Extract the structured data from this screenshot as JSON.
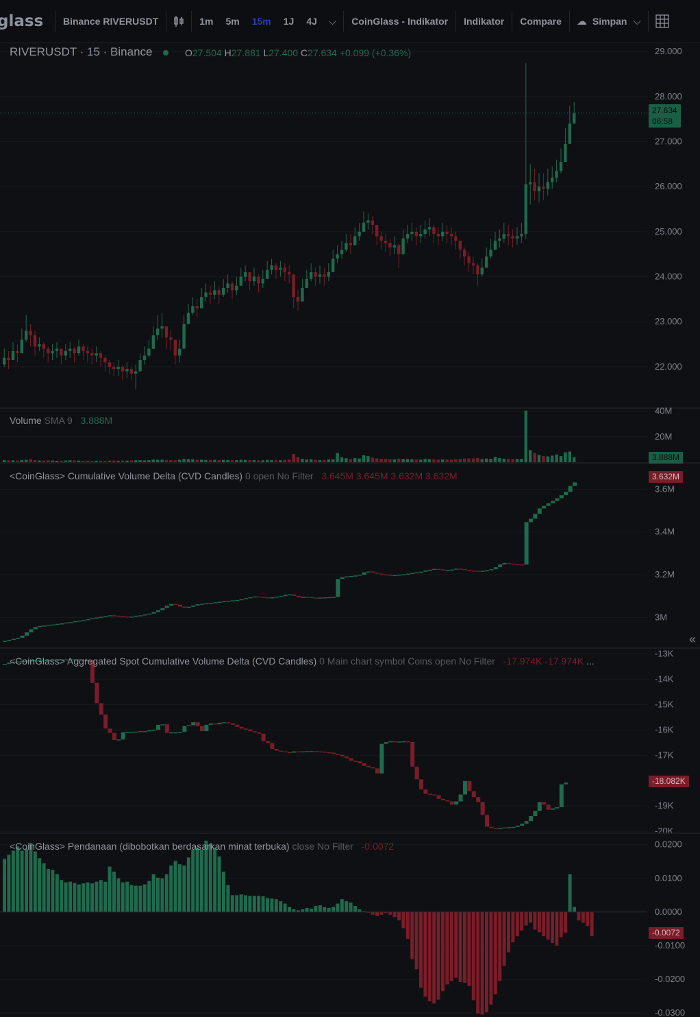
{
  "toolbar": {
    "logo": "glass",
    "symbol": "Binance RIVERUSDT",
    "candle_icon": "candlestick-icon",
    "intervals": [
      "1m",
      "5m",
      "15m",
      "1J",
      "4J"
    ],
    "active_interval": "15m",
    "indicator_button": "CoinGlass - Indikator",
    "indicators": "Indikator",
    "compare": "Compare",
    "save": "Simpan",
    "layout_icon": "grid-icon"
  },
  "colors": {
    "up": "#1f6a4d",
    "down": "#7a1d29",
    "grid": "#17191d",
    "bg": "#0f1013"
  },
  "main": {
    "title": "RIVERUSDT · 15 · Binance",
    "o_label": "O",
    "o": "27.504",
    "h_label": "H",
    "h": "27.881",
    "l_label": "L",
    "l": "27.400",
    "c_label": "C",
    "c": "27.634",
    "change": "+0.099 (+0.36%)",
    "price_tag": "27.634",
    "countdown": "06:58"
  },
  "volume": {
    "label": "Volume",
    "sma": "SMA 9",
    "value": "3.888M",
    "tag": "3.888M"
  },
  "cvd": {
    "label": "<CoinGlass> Cumulative Volume Delta (CVD Candles)",
    "params": "0 open No Filter",
    "o": "3.645M",
    "h": "3.645M",
    "l": "3.632M",
    "c": "3.632M",
    "tag": "3.632M"
  },
  "spot_cvd": {
    "label": "<CoinGlass> Aggregated Spot Cumulative Volume Delta (CVD Candles)",
    "params": "0 Main chart symbol Coins open No Filter",
    "v1": "-17.974K",
    "v2": "-17.974K",
    "more": "...",
    "tag": "-18.082K"
  },
  "funding": {
    "label": "<CoinGlass> Pendanaan (dibobotkan berdasarkan minat terbuka)",
    "params": "close No Filter",
    "value": "-0.0072",
    "tag": "-0.0072"
  },
  "chart_data": [
    {
      "type": "candlestick",
      "title": "RIVERUSDT · 15 · Binance",
      "ylim": [
        21.1,
        29.2
      ],
      "yticks": [
        "29.000",
        "28.000",
        "27.000",
        "26.000",
        "25.000",
        "24.000",
        "23.000",
        "22.000"
      ],
      "close": [
        22.2,
        22.15,
        22.35,
        22.3,
        22.6,
        22.8,
        22.7,
        22.45,
        22.5,
        22.4,
        22.3,
        22.35,
        22.4,
        22.25,
        22.35,
        22.4,
        22.3,
        22.45,
        22.35,
        22.3,
        22.25,
        22.3,
        22.2,
        22.1,
        22.0,
        21.95,
        22.0,
        21.9,
        21.95,
        21.85,
        21.9,
        22.15,
        22.25,
        22.4,
        22.7,
        22.85,
        22.9,
        22.65,
        22.6,
        22.25,
        22.4,
        22.95,
        23.2,
        23.35,
        23.3,
        23.55,
        23.65,
        23.6,
        23.7,
        23.6,
        23.75,
        23.85,
        23.7,
        23.8,
        24.0,
        24.1,
        23.9,
        24.0,
        23.85,
        23.95,
        24.15,
        24.25,
        24.15,
        24.2,
        24.1,
        24.05,
        23.55,
        23.45,
        23.75,
        23.95,
        24.1,
        24.0,
        24.05,
        24.0,
        24.1,
        24.4,
        24.5,
        24.6,
        24.75,
        24.7,
        24.9,
        25.0,
        25.2,
        25.25,
        25.15,
        24.9,
        24.8,
        24.75,
        24.65,
        24.7,
        24.5,
        24.85,
        24.95,
        25.0,
        24.9,
        24.95,
        25.05,
        25.1,
        24.95,
        24.9,
        25.0,
        24.95,
        24.9,
        24.8,
        24.6,
        24.45,
        24.3,
        24.25,
        24.05,
        24.2,
        24.45,
        24.6,
        24.8,
        24.85,
        24.95,
        24.9,
        24.85,
        24.9,
        24.95,
        26.05,
        26.1,
        25.9,
        26.0,
        25.95,
        26.1,
        26.2,
        26.35,
        26.55,
        26.95,
        27.4,
        27.63
      ],
      "high": [
        22.4,
        22.35,
        22.55,
        22.5,
        22.85,
        23.15,
        22.95,
        22.8,
        22.65,
        22.55,
        22.45,
        22.5,
        22.55,
        22.4,
        22.5,
        22.55,
        22.45,
        22.6,
        22.5,
        22.45,
        22.4,
        22.45,
        22.35,
        22.25,
        22.15,
        22.1,
        22.15,
        22.05,
        22.1,
        22.0,
        22.05,
        22.3,
        22.45,
        22.6,
        22.9,
        23.15,
        23.2,
        22.9,
        22.8,
        22.55,
        22.6,
        23.15,
        23.4,
        23.55,
        23.5,
        23.75,
        23.85,
        23.8,
        23.9,
        23.8,
        23.95,
        24.05,
        23.9,
        24.0,
        24.2,
        24.25,
        24.1,
        24.2,
        24.05,
        24.15,
        24.35,
        24.4,
        24.3,
        24.35,
        24.3,
        24.25,
        23.8,
        23.7,
        23.95,
        24.15,
        24.3,
        24.2,
        24.25,
        24.2,
        24.3,
        24.6,
        24.7,
        24.8,
        24.95,
        24.95,
        25.1,
        25.2,
        25.45,
        25.4,
        25.35,
        25.1,
        25.0,
        24.95,
        24.85,
        24.9,
        24.75,
        25.05,
        25.15,
        25.2,
        25.1,
        25.15,
        25.25,
        25.3,
        25.15,
        25.1,
        25.2,
        25.15,
        25.1,
        25.0,
        24.8,
        24.65,
        24.55,
        24.45,
        24.3,
        24.4,
        24.65,
        24.85,
        25.0,
        25.05,
        25.2,
        25.15,
        25.05,
        25.1,
        25.2,
        28.75,
        26.5,
        26.4,
        26.3,
        26.3,
        26.4,
        26.45,
        26.6,
        26.85,
        27.3,
        27.8,
        27.88
      ],
      "low": [
        22.0,
        21.95,
        22.15,
        22.1,
        22.4,
        22.55,
        22.45,
        22.25,
        22.35,
        22.2,
        22.1,
        22.15,
        22.2,
        22.05,
        22.15,
        22.2,
        22.1,
        22.25,
        22.15,
        22.1,
        22.05,
        22.1,
        22.0,
        21.9,
        21.85,
        21.8,
        21.8,
        21.7,
        21.75,
        21.7,
        21.5,
        21.9,
        22.05,
        22.2,
        22.5,
        22.6,
        22.65,
        22.4,
        22.35,
        22.05,
        22.1,
        22.7,
        23.0,
        23.15,
        23.1,
        23.35,
        23.45,
        23.4,
        23.5,
        23.4,
        23.55,
        23.65,
        23.5,
        23.6,
        23.8,
        23.9,
        23.7,
        23.8,
        23.65,
        23.75,
        23.95,
        24.05,
        23.95,
        24.0,
        23.9,
        23.85,
        23.3,
        23.25,
        23.5,
        23.75,
        23.9,
        23.8,
        23.85,
        23.8,
        23.9,
        24.2,
        24.3,
        24.4,
        24.55,
        24.5,
        24.7,
        24.8,
        25.0,
        25.05,
        24.95,
        24.7,
        24.6,
        24.55,
        24.45,
        24.5,
        24.2,
        24.65,
        24.75,
        24.8,
        24.7,
        24.75,
        24.85,
        24.9,
        24.75,
        24.7,
        24.8,
        24.75,
        24.7,
        24.6,
        24.4,
        24.25,
        24.1,
        24.05,
        23.8,
        24.0,
        24.25,
        24.4,
        24.6,
        24.65,
        24.75,
        24.7,
        24.65,
        24.7,
        24.75,
        24.85,
        25.6,
        25.7,
        25.65,
        25.7,
        25.8,
        25.95,
        26.1,
        26.3,
        26.7,
        27.15,
        27.4
      ],
      "price_line": 27.634
    },
    {
      "type": "bar",
      "title": "Volume",
      "ylim": [
        0,
        42
      ],
      "unit": "M",
      "yticks": [
        "40M",
        "20M"
      ],
      "values": [
        1.6,
        1.4,
        1.5,
        1.3,
        1.7,
        1.9,
        2.4,
        1.6,
        1.3,
        1.2,
        1.4,
        1.3,
        1.1,
        1.2,
        1.3,
        1.5,
        1.4,
        1.2,
        1.1,
        1.2,
        1.0,
        1.1,
        1.2,
        1.0,
        1.3,
        1.2,
        1.1,
        1.3,
        1.2,
        1.4,
        1.5,
        1.6,
        1.4,
        1.7,
        2.1,
        1.9,
        2.0,
        1.7,
        1.6,
        1.5,
        1.9,
        2.6,
        2.5,
        2.3,
        1.9,
        2.0,
        1.8,
        1.7,
        1.9,
        1.6,
        1.8,
        1.7,
        1.5,
        1.6,
        1.9,
        1.8,
        1.6,
        1.7,
        1.4,
        1.5,
        1.8,
        1.7,
        1.5,
        1.6,
        1.8,
        2.1,
        6.5,
        4.0,
        2.6,
        2.1,
        2.3,
        1.9,
        1.7,
        1.8,
        2.2,
        2.3,
        7.2,
        3.8,
        3.1,
        2.5,
        3.2,
        2.9,
        5.5,
        4.8,
        3.6,
        3.0,
        2.6,
        2.5,
        2.4,
        2.2,
        2.8,
        2.6,
        2.4,
        2.3,
        2.2,
        2.1,
        2.6,
        2.4,
        2.2,
        2.0,
        2.3,
        2.1,
        2.0,
        2.4,
        2.6,
        2.8,
        3.0,
        2.9,
        3.3,
        2.5,
        2.9,
        2.6,
        4.2,
        3.3,
        2.8,
        2.6,
        2.4,
        2.5,
        2.6,
        40.5,
        9.5,
        7.2,
        5.8,
        4.9,
        4.6,
        5.2,
        6.1,
        4.8,
        7.8,
        8.4,
        3.9
      ],
      "sma_value": 3.888
    },
    {
      "type": "candlestick",
      "title": "<CoinGlass> Cumulative Volume Delta (CVD Candles)",
      "ylim": [
        2.86,
        3.72
      ],
      "unit": "M",
      "yticks": [
        "3.6M",
        "3.4M",
        "3.2M",
        "3M"
      ],
      "close": [
        2.89,
        2.895,
        2.9,
        2.905,
        2.915,
        2.93,
        2.945,
        2.955,
        2.96,
        2.962,
        2.965,
        2.967,
        2.97,
        2.972,
        2.976,
        2.978,
        2.982,
        2.985,
        2.988,
        2.992,
        2.996,
        3.0,
        3.003,
        3.007,
        3.01,
        3.008,
        3.006,
        3.004,
        3.002,
        3.004,
        3.008,
        3.01,
        3.014,
        3.018,
        3.025,
        3.034,
        3.044,
        3.055,
        3.063,
        3.06,
        3.051,
        3.045,
        3.05,
        3.056,
        3.062,
        3.064,
        3.066,
        3.068,
        3.071,
        3.073,
        3.076,
        3.078,
        3.08,
        3.082,
        3.085,
        3.09,
        3.094,
        3.098,
        3.096,
        3.094,
        3.092,
        3.094,
        3.097,
        3.1,
        3.106,
        3.108,
        3.101,
        3.094,
        3.096,
        3.095,
        3.093,
        3.092,
        3.093,
        3.094,
        3.095,
        3.096,
        3.18,
        3.188,
        3.192,
        3.194,
        3.196,
        3.2,
        3.211,
        3.215,
        3.21,
        3.205,
        3.202,
        3.2,
        3.195,
        3.198,
        3.2,
        3.202,
        3.205,
        3.208,
        3.211,
        3.214,
        3.22,
        3.223,
        3.227,
        3.225,
        3.222,
        3.222,
        3.224,
        3.228,
        3.226,
        3.222,
        3.219,
        3.218,
        3.216,
        3.218,
        3.221,
        3.226,
        3.235,
        3.248,
        3.255,
        3.252,
        3.249,
        3.248,
        3.247,
        3.446,
        3.462,
        3.485,
        3.51,
        3.522,
        3.534,
        3.545,
        3.558,
        3.572,
        3.588,
        3.615,
        3.632
      ]
    },
    {
      "type": "candlestick",
      "title": "<CoinGlass> Aggregated Spot Cumulative Volume Delta (CVD Candles)",
      "ylim": [
        -20.05,
        -12.8
      ],
      "unit": "K",
      "yticks": [
        "-13K",
        "-14K",
        "-15K",
        "-16K",
        "-17K",
        "-19K",
        "-20K"
      ],
      "close": [
        -13.4,
        -13.35,
        -13.32,
        -13.3,
        -13.28,
        -13.27,
        -13.26,
        -13.26,
        -13.25,
        -13.24,
        -13.24,
        -13.23,
        -13.22,
        -13.22,
        -13.22,
        -13.22,
        -13.22,
        -13.23,
        -13.25,
        -13.25,
        -14.15,
        -14.95,
        -15.4,
        -15.95,
        -16.12,
        -16.4,
        -16.38,
        -16.1,
        -16.08,
        -16.08,
        -16.07,
        -16.05,
        -16.05,
        -16.02,
        -16.0,
        -15.8,
        -15.78,
        -16.12,
        -16.1,
        -16.1,
        -16.08,
        -15.85,
        -15.82,
        -15.7,
        -15.85,
        -16.05,
        -15.8,
        -15.75,
        -15.78,
        -15.72,
        -15.7,
        -15.74,
        -15.8,
        -15.88,
        -15.95,
        -15.98,
        -16.05,
        -16.1,
        -16.15,
        -16.45,
        -16.52,
        -16.75,
        -16.82,
        -16.85,
        -16.88,
        -16.9,
        -16.85,
        -16.86,
        -16.85,
        -16.84,
        -16.84,
        -16.85,
        -16.86,
        -16.88,
        -16.9,
        -16.95,
        -16.98,
        -17.05,
        -17.12,
        -17.22,
        -17.24,
        -17.32,
        -17.42,
        -17.48,
        -17.52,
        -17.72,
        -16.55,
        -16.48,
        -16.45,
        -16.47,
        -16.46,
        -16.45,
        -16.48,
        -17.45,
        -17.95,
        -18.35,
        -18.52,
        -18.55,
        -18.58,
        -18.72,
        -18.78,
        -18.82,
        -18.95,
        -18.82,
        -18.55,
        -18.02,
        -18.42,
        -18.65,
        -18.85,
        -19.35,
        -19.82,
        -19.88,
        -19.9,
        -19.88,
        -19.85,
        -19.84,
        -19.83,
        -19.78,
        -19.7,
        -19.6,
        -19.4,
        -19.2,
        -18.85,
        -18.95,
        -19.15,
        -19.1,
        -19.05,
        -18.15,
        -18.08
      ]
    },
    {
      "type": "bar",
      "title": "<CoinGlass> Pendanaan (dibobotkan berdasarkan minat terbuka)",
      "ylim": [
        -0.0312,
        0.0232
      ],
      "yticks": [
        "0.0200",
        "0.0100",
        "0.0000",
        "-0.0100",
        "-0.0200",
        "-0.0300"
      ],
      "values": [
        0.0158,
        0.017,
        0.0182,
        0.0195,
        0.0182,
        0.0188,
        0.0205,
        0.018,
        0.016,
        0.0145,
        0.0128,
        0.0125,
        0.0112,
        0.0095,
        0.0088,
        0.009,
        0.0086,
        0.0082,
        0.0085,
        0.0088,
        0.0085,
        0.009,
        0.0095,
        0.009,
        0.0135,
        0.012,
        0.01,
        0.0088,
        0.009,
        0.008,
        0.0078,
        0.0078,
        0.0082,
        0.0092,
        0.0112,
        0.0102,
        0.01,
        0.0112,
        0.0138,
        0.0152,
        0.0142,
        0.0138,
        0.0162,
        0.0185,
        0.0192,
        0.0185,
        0.0212,
        0.0202,
        0.019,
        0.0165,
        0.012,
        0.008,
        0.005,
        0.005,
        0.0052,
        0.005,
        0.0048,
        0.0048,
        0.0048,
        0.0047,
        0.0042,
        0.004,
        0.0038,
        0.0032,
        0.0025,
        0.0015,
        0.0008,
        0.0005,
        0.0008,
        0.0012,
        0.001,
        0.0018,
        0.002,
        0.0014,
        0.0012,
        0.0015,
        0.0025,
        0.0038,
        0.0032,
        0.0028,
        0.0018,
        0.0008,
        0.0002,
        -0.0002,
        -0.0008,
        -0.0012,
        -0.0008,
        -0.0003,
        -0.0008,
        -0.0015,
        -0.0025,
        -0.0048,
        -0.008,
        -0.014,
        -0.017,
        -0.0225,
        -0.0252,
        -0.0265,
        -0.0272,
        -0.026,
        -0.0235,
        -0.0215,
        -0.0205,
        -0.0195,
        -0.0208,
        -0.021,
        -0.022,
        -0.0262,
        -0.0302,
        -0.0305,
        -0.0298,
        -0.0275,
        -0.0245,
        -0.0205,
        -0.016,
        -0.012,
        -0.009,
        -0.0072,
        -0.0055,
        -0.004,
        -0.0032,
        -0.0052,
        -0.006,
        -0.0072,
        -0.0082,
        -0.0092,
        -0.01,
        -0.0075,
        -0.0062,
        0.0112,
        0.0015,
        -0.0025,
        -0.0032,
        -0.0042,
        -0.0072
      ]
    }
  ]
}
